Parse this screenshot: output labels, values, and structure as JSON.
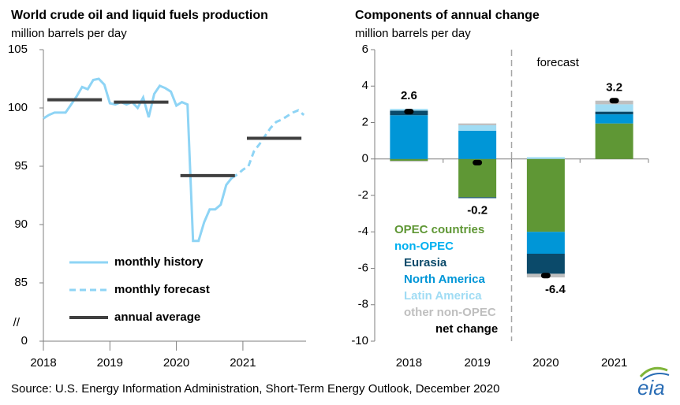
{
  "chart_data": [
    {
      "type": "line",
      "title": "World crude oil and liquid fuels production",
      "subtitle": "million barrels per day",
      "x": [
        2018,
        2018.083,
        2018.167,
        2018.25,
        2018.333,
        2018.417,
        2018.5,
        2018.583,
        2018.667,
        2018.75,
        2018.833,
        2018.917,
        2019,
        2019.083,
        2019.167,
        2019.25,
        2019.333,
        2019.417,
        2019.5,
        2019.583,
        2019.667,
        2019.75,
        2019.833,
        2019.917,
        2020,
        2020.083,
        2020.167,
        2020.25,
        2020.333,
        2020.417,
        2020.5,
        2020.583,
        2020.667,
        2020.75,
        2020.833,
        2020.917,
        2021,
        2021.083,
        2021.167,
        2021.25,
        2021.333,
        2021.417,
        2021.5,
        2021.583,
        2021.667,
        2021.75,
        2021.833,
        2021.917
      ],
      "series": [
        {
          "name": "monthly history",
          "color": "#8ed4f5",
          "dashed": false,
          "values": [
            99.1,
            99.4,
            99.6,
            99.6,
            99.6,
            100.3,
            101.0,
            101.8,
            101.6,
            102.4,
            102.5,
            102.0,
            100.4,
            100.3,
            100.5,
            100.3,
            100.5,
            100.0,
            100.9,
            99.2,
            101.2,
            101.9,
            101.7,
            101.4,
            100.2,
            100.5,
            100.3,
            88.6,
            88.6,
            90.2,
            91.3,
            91.3,
            91.7,
            93.4,
            94.0,
            null,
            null,
            null,
            null,
            null,
            null,
            null,
            null,
            null,
            null,
            null,
            null,
            null
          ]
        },
        {
          "name": "monthly forecast",
          "color": "#8ed4f5",
          "dashed": true,
          "values": [
            null,
            null,
            null,
            null,
            null,
            null,
            null,
            null,
            null,
            null,
            null,
            null,
            null,
            null,
            null,
            null,
            null,
            null,
            null,
            null,
            null,
            null,
            null,
            null,
            null,
            null,
            null,
            null,
            null,
            null,
            null,
            null,
            null,
            null,
            94.0,
            94.3,
            94.7,
            95.0,
            96.3,
            96.9,
            97.6,
            98.3,
            98.8,
            99.0,
            99.3,
            99.6,
            99.8,
            99.4
          ]
        },
        {
          "name": "annual average",
          "color": "#404040",
          "style": "segment",
          "x": [
            2018,
            2019,
            2020,
            2021
          ],
          "values": [
            100.7,
            100.5,
            94.2,
            97.4
          ]
        }
      ],
      "xlim": [
        2018,
        2021.95
      ],
      "xticks": [
        2018,
        2019,
        2020,
        2021
      ],
      "ylim": [
        0,
        105
      ],
      "yticks": [
        0,
        85,
        90,
        95,
        100,
        105
      ],
      "axis_break": {
        "from": 0,
        "to": 80,
        "label": "//"
      }
    },
    {
      "type": "bar",
      "stacked": true,
      "title": "Components of annual change",
      "subtitle": "million barrels per day",
      "categories": [
        "2018",
        "2019",
        "2020",
        "2021"
      ],
      "series": [
        {
          "name": "OPEC countries",
          "color": "#5f9735",
          "values": [
            -0.1,
            -2.1,
            -4.0,
            1.95
          ]
        },
        {
          "name": "North America",
          "color": "#0096d7",
          "values": [
            2.4,
            1.55,
            -1.2,
            0.5
          ]
        },
        {
          "name": "Eurasia",
          "color": "#0b4a6a",
          "values": [
            0.25,
            -0.05,
            -1.1,
            0.15
          ]
        },
        {
          "name": "Latin America",
          "color": "#a0dcf4",
          "values": [
            0.1,
            0.3,
            0.1,
            0.4
          ]
        },
        {
          "name": "other non-OPEC",
          "color": "#bfbfbf",
          "values": [
            -0.05,
            0.1,
            -0.2,
            0.2
          ]
        }
      ],
      "legend_group": {
        "text": "non-OPEC",
        "color": "#00b0f0"
      },
      "net": {
        "name": "net change",
        "color": "#000000",
        "values": [
          2.6,
          -0.2,
          -6.4,
          3.2
        ]
      },
      "annotation": "forecast",
      "ylim": [
        -10,
        6
      ],
      "yticks": [
        -10,
        -8,
        -6,
        -4,
        -2,
        0,
        2,
        4,
        6
      ]
    }
  ],
  "source": "Source: U.S. Energy Information Administration, Short-Term Energy Outlook, December 2020",
  "logo": "eia"
}
